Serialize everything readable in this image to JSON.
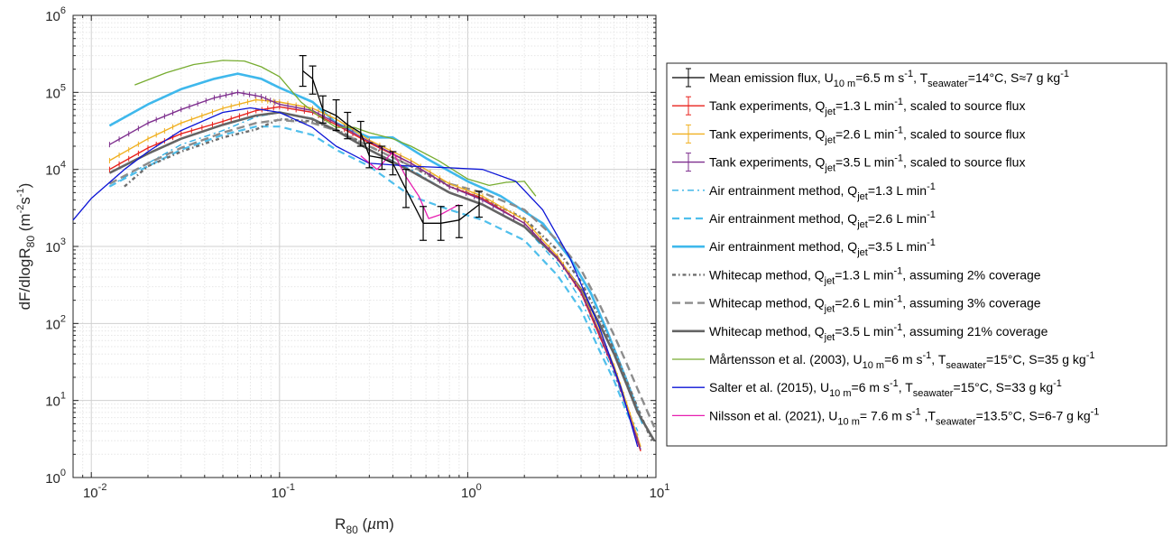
{
  "chart_data": {
    "type": "line",
    "xlabel": "R80 (µm)",
    "ylabel": "dF/dlogR80 (m-2s-1)",
    "x_scale": "log",
    "y_scale": "log",
    "xlim": [
      0.008,
      10
    ],
    "ylim": [
      1,
      1000000
    ],
    "grid": true,
    "legend_position": "right, outside",
    "x_ticks": [
      {
        "value": 0.01,
        "base": "10",
        "exp": "-2"
      },
      {
        "value": 0.1,
        "base": "10",
        "exp": "-1"
      },
      {
        "value": 1,
        "base": "10",
        "exp": "0"
      },
      {
        "value": 10,
        "base": "10",
        "exp": "1"
      }
    ],
    "y_ticks": [
      {
        "value": 1,
        "base": "10",
        "exp": "0"
      },
      {
        "value": 10,
        "base": "10",
        "exp": "1"
      },
      {
        "value": 100,
        "base": "10",
        "exp": "2"
      },
      {
        "value": 1000,
        "base": "10",
        "exp": "3"
      },
      {
        "value": 10000,
        "base": "10",
        "exp": "4"
      },
      {
        "value": 100000,
        "base": "10",
        "exp": "5"
      },
      {
        "value": 1000000,
        "base": "10",
        "exp": "6"
      }
    ],
    "series": [
      {
        "name": "Mean emission flux, U10 m=6.5 m s-1, Tseawater=14°C, S≈7 g kg-1",
        "legend_parts": [
          [
            "Mean emission flux, U",
            ""
          ],
          [
            "10 m",
            "sub"
          ],
          [
            "=6.5 m s",
            ""
          ],
          [
            "-1",
            "sup"
          ],
          [
            ", T",
            ""
          ],
          [
            "seawater",
            "sub"
          ],
          [
            "=14°C, S≈7 g kg",
            ""
          ],
          [
            "-1",
            "sup"
          ]
        ],
        "color": "#000000",
        "width": 1.3,
        "dash": "",
        "errorbars": "main",
        "x": [
          0.133,
          0.15,
          0.17,
          0.2,
          0.23,
          0.27,
          0.3,
          0.35,
          0.4,
          0.47,
          0.58,
          0.72,
          0.9,
          1.15
        ],
        "y": [
          190000,
          150000,
          60000,
          50000,
          38000,
          30000,
          15000,
          14000,
          12000,
          5500,
          2000,
          2000,
          2200,
          3500
        ],
        "err": [
          [
            120000,
            300000
          ],
          [
            95000,
            220000
          ],
          [
            40000,
            90000
          ],
          [
            32000,
            80000
          ],
          [
            25000,
            55000
          ],
          [
            20000,
            42000
          ],
          [
            10500,
            22000
          ],
          [
            10000,
            20000
          ],
          [
            8500,
            17000
          ],
          [
            3200,
            10000
          ],
          [
            1200,
            3300
          ],
          [
            1200,
            3300
          ],
          [
            1300,
            3400
          ],
          [
            2400,
            5200
          ]
        ]
      },
      {
        "name": "Tank experiments, Qjet=1.3 L min-1, scaled to source flux",
        "legend_parts": [
          [
            "Tank experiments, Q",
            ""
          ],
          [
            "jet",
            "sub"
          ],
          [
            "=1.3 L min",
            ""
          ],
          [
            "-1",
            "sup"
          ],
          [
            ", scaled to source flux",
            ""
          ]
        ],
        "color": "#e8221c",
        "width": 1.4,
        "dash": "",
        "errorbars": "small",
        "x": [
          0.0125,
          0.02,
          0.03,
          0.05,
          0.075,
          0.1,
          0.15,
          0.2,
          0.3,
          0.5,
          0.8,
          1.2,
          2,
          3,
          4,
          5,
          6,
          7,
          8.3
        ],
        "y": [
          10000,
          19000,
          29000,
          42000,
          58000,
          65000,
          55000,
          38000,
          22000,
          12000,
          6000,
          4200,
          2000,
          700,
          250,
          70,
          25,
          8,
          2.2
        ]
      },
      {
        "name": "Tank experiments, Qjet=2.6 L min-1, scaled to source flux",
        "legend_parts": [
          [
            "Tank experiments, Q",
            ""
          ],
          [
            "jet",
            "sub"
          ],
          [
            "=2.6 L min",
            ""
          ],
          [
            "-1",
            "sup"
          ],
          [
            ", scaled to source flux",
            ""
          ]
        ],
        "color": "#f0b021",
        "width": 1.4,
        "dash": "",
        "errorbars": "small",
        "x": [
          0.0125,
          0.02,
          0.03,
          0.05,
          0.075,
          0.1,
          0.15,
          0.2,
          0.3,
          0.5,
          0.8,
          1.2,
          2,
          3,
          4,
          5,
          6,
          7,
          8.3
        ],
        "y": [
          13000,
          25000,
          40000,
          62000,
          80000,
          75000,
          62000,
          45000,
          24000,
          13000,
          6500,
          4500,
          2200,
          750,
          270,
          80,
          28,
          9,
          2.5
        ]
      },
      {
        "name": "Tank experiments, Qjet=3.5 L min-1, scaled to source flux",
        "legend_parts": [
          [
            "Tank experiments, Q",
            ""
          ],
          [
            "jet",
            "sub"
          ],
          [
            "=3.5 L min",
            ""
          ],
          [
            "-1",
            "sup"
          ],
          [
            ", scaled to source flux",
            ""
          ]
        ],
        "color": "#7e2f8e",
        "width": 1.4,
        "dash": "",
        "errorbars": "small",
        "x": [
          0.0125,
          0.02,
          0.03,
          0.045,
          0.06,
          0.08,
          0.1,
          0.15,
          0.2,
          0.3,
          0.5,
          0.8,
          1.2,
          2,
          3,
          4,
          5,
          6,
          7,
          8.3
        ],
        "y": [
          21000,
          40000,
          60000,
          85000,
          100000,
          88000,
          70000,
          58000,
          40000,
          23000,
          12000,
          6000,
          4000,
          2000,
          700,
          260,
          75,
          25,
          8,
          2.3
        ]
      },
      {
        "name": "Air entrainment method, Qjet=1.3 L min-1",
        "legend_parts": [
          [
            "Air entrainment method, Q",
            ""
          ],
          [
            "jet",
            "sub"
          ],
          [
            "=1.3 L min",
            ""
          ],
          [
            "-1",
            "sup"
          ]
        ],
        "color": "#32b1e6",
        "width": 1.4,
        "dash": "7 4 2 4",
        "errorbars": "",
        "x": [
          0.0125,
          0.02,
          0.03,
          0.05,
          0.075,
          0.1,
          0.15,
          0.2,
          0.3,
          0.5,
          0.8,
          1.2,
          2,
          3,
          4,
          5,
          6,
          7,
          8
        ],
        "y": [
          6000,
          12000,
          21000,
          32000,
          48000,
          55000,
          46000,
          32000,
          18000,
          10000,
          5000,
          3500,
          1800,
          600,
          200,
          60,
          22,
          8,
          4
        ]
      },
      {
        "name": "Air entrainment method, Qjet=2.6 L min-1",
        "legend_parts": [
          [
            "Air entrainment method, Q",
            ""
          ],
          [
            "jet",
            "sub"
          ],
          [
            "=2.6 L min",
            ""
          ],
          [
            "-1",
            "sup"
          ]
        ],
        "color": "#4fbfec",
        "width": 2.2,
        "dash": "8 5",
        "errorbars": "",
        "x": [
          0.0125,
          0.02,
          0.03,
          0.05,
          0.075,
          0.1,
          0.15,
          0.2,
          0.3,
          0.5,
          0.8,
          1.2,
          2,
          3,
          4,
          5,
          6,
          7,
          8
        ],
        "y": [
          6000,
          11000,
          18000,
          28000,
          36000,
          36000,
          28000,
          18000,
          11000,
          4500,
          3000,
          2200,
          1200,
          420,
          150,
          45,
          18,
          7,
          3.5
        ]
      },
      {
        "name": "Air entrainment method, Qjet=3.5 L min-1",
        "legend_parts": [
          [
            "Air entrainment method, Q",
            ""
          ],
          [
            "jet",
            "sub"
          ],
          [
            "=3.5 L min",
            ""
          ],
          [
            "-1",
            "sup"
          ]
        ],
        "color": "#3fb8ec",
        "width": 2.6,
        "dash": "",
        "errorbars": "",
        "x": [
          0.0125,
          0.02,
          0.03,
          0.045,
          0.06,
          0.08,
          0.1,
          0.15,
          0.2,
          0.3,
          0.4,
          0.6,
          1,
          1.5,
          2.5,
          3.5,
          4.5,
          5.5,
          7,
          8.5
        ],
        "y": [
          37000,
          70000,
          110000,
          150000,
          175000,
          150000,
          115000,
          75000,
          40000,
          26000,
          26000,
          14000,
          7000,
          4500,
          2000,
          700,
          250,
          80,
          18,
          5
        ]
      },
      {
        "name": "Whitecap method, Qjet=1.3 L min-1, assuming 2% coverage",
        "legend_parts": [
          [
            "Whitecap method, Q",
            ""
          ],
          [
            "jet",
            "sub"
          ],
          [
            "=1.3 L min",
            ""
          ],
          [
            "-1",
            "sup"
          ],
          [
            ", assuming 2% coverage",
            ""
          ]
        ],
        "color": "#6e6e6e",
        "width": 2.4,
        "dash": "4 3 1.5 3",
        "errorbars": "",
        "x": [
          0.015,
          0.02,
          0.03,
          0.05,
          0.075,
          0.1,
          0.15,
          0.2,
          0.3,
          0.5,
          0.8,
          1.2,
          2,
          3,
          4,
          5,
          6,
          7,
          8,
          9.5
        ],
        "y": [
          6000,
          11000,
          17000,
          26000,
          33000,
          45000,
          42000,
          33000,
          20000,
          11000,
          6000,
          4200,
          2300,
          900,
          350,
          120,
          45,
          18,
          8,
          3
        ]
      },
      {
        "name": "Whitecap method, Qjet=2.6 L min-1, assuming 3% coverage",
        "legend_parts": [
          [
            "Whitecap method, Q",
            ""
          ],
          [
            "jet",
            "sub"
          ],
          [
            "=2.6 L min",
            ""
          ],
          [
            "-1",
            "sup"
          ],
          [
            ", assuming 3% coverage",
            ""
          ]
        ],
        "color": "#8c8c8c",
        "width": 2.4,
        "dash": "9 5",
        "errorbars": "",
        "x": [
          0.0125,
          0.02,
          0.03,
          0.05,
          0.075,
          0.1,
          0.15,
          0.2,
          0.3,
          0.5,
          0.8,
          1.2,
          2,
          3,
          4,
          5,
          6,
          7,
          8,
          9.8
        ],
        "y": [
          6500,
          12000,
          19000,
          30000,
          40000,
          44000,
          40000,
          32000,
          20000,
          11000,
          6500,
          5000,
          3000,
          1200,
          500,
          180,
          70,
          30,
          14,
          4.5
        ]
      },
      {
        "name": "Whitecap method, Qjet=3.5 L min-1, assuming 21% coverage",
        "legend_parts": [
          [
            "Whitecap method, Q",
            ""
          ],
          [
            "jet",
            "sub"
          ],
          [
            "=3.5 L min",
            ""
          ],
          [
            "-1",
            "sup"
          ],
          [
            ", assuming 21% coverage",
            ""
          ]
        ],
        "color": "#646464",
        "width": 2.6,
        "dash": "",
        "errorbars": "",
        "x": [
          0.0125,
          0.02,
          0.03,
          0.05,
          0.075,
          0.1,
          0.15,
          0.2,
          0.3,
          0.5,
          0.8,
          1.2,
          2,
          3,
          4,
          5,
          6,
          7,
          8,
          9.8
        ],
        "y": [
          9000,
          16000,
          25000,
          38000,
          50000,
          55000,
          45000,
          32000,
          18000,
          9500,
          5000,
          3500,
          1800,
          700,
          280,
          100,
          40,
          16,
          7,
          3
        ]
      },
      {
        "name": "Mårtensson et al. (2003), U10 m=6 m s-1, Tseawater=15°C, S=35 g kg-1",
        "legend_parts": [
          [
            "Mårtensson et al. (2003), U",
            ""
          ],
          [
            "10 m",
            "sub"
          ],
          [
            "=6 m s",
            ""
          ],
          [
            "-1",
            "sup"
          ],
          [
            ", T",
            ""
          ],
          [
            "seawater",
            "sub"
          ],
          [
            "=15°C, S=35 g kg",
            ""
          ],
          [
            "-1",
            "sup"
          ]
        ],
        "color": "#77ac30",
        "width": 1.3,
        "dash": "",
        "errorbars": "",
        "x": [
          0.017,
          0.025,
          0.035,
          0.05,
          0.065,
          0.08,
          0.1,
          0.13,
          0.16,
          0.2,
          0.25,
          0.3,
          0.4,
          0.5,
          0.7,
          1,
          1.3,
          1.6,
          2,
          2.3
        ],
        "y": [
          125000,
          180000,
          230000,
          260000,
          255000,
          215000,
          160000,
          75000,
          50000,
          35000,
          35000,
          30000,
          25000,
          20000,
          13000,
          7500,
          6200,
          6800,
          7000,
          4500
        ]
      },
      {
        "name": "Salter et al. (2015), U10 m=6 m s-1, Tseawater=15°C, S=33 g kg-1",
        "legend_parts": [
          [
            "Salter et al. (2015), U",
            ""
          ],
          [
            "10 m",
            "sub"
          ],
          [
            "=6 m s",
            ""
          ],
          [
            "-1",
            "sup"
          ],
          [
            ", T",
            ""
          ],
          [
            "seawater",
            "sub"
          ],
          [
            "=15°C, S=33 g kg",
            ""
          ],
          [
            "-1",
            "sup"
          ]
        ],
        "color": "#0b14d6",
        "width": 1.3,
        "dash": "",
        "errorbars": "",
        "x": [
          0.008,
          0.01,
          0.015,
          0.02,
          0.03,
          0.05,
          0.07,
          0.1,
          0.15,
          0.2,
          0.3,
          0.5,
          0.8,
          1.2,
          1.8,
          2.5,
          3.5,
          5,
          6.5,
          8
        ],
        "y": [
          2200,
          4200,
          10000,
          17000,
          32000,
          55000,
          63000,
          55000,
          35000,
          20000,
          12000,
          11000,
          10500,
          10000,
          7000,
          3000,
          700,
          90,
          15,
          2.5
        ]
      },
      {
        "name": "Nilsson et al. (2021), U10 m= 7.6 m s-1 ,Tseawater=13.5°C, S=6-7 g kg-1",
        "legend_parts": [
          [
            "Nilsson et al. (2021), U",
            ""
          ],
          [
            "10 m",
            "sub"
          ],
          [
            "= 7.6 m s",
            ""
          ],
          [
            "-1",
            "sup"
          ],
          [
            " ,T",
            ""
          ],
          [
            "seawater",
            "sub"
          ],
          [
            "=13.5°C,  S=6-7 g kg",
            ""
          ],
          [
            "-1",
            "sup"
          ]
        ],
        "color": "#e61eb0",
        "width": 1.3,
        "dash": "",
        "errorbars": "",
        "x": [
          0.27,
          0.33,
          0.4,
          0.47,
          0.55,
          0.62,
          0.72,
          0.9
        ],
        "y": [
          15000,
          10000,
          17000,
          8000,
          4500,
          2300,
          2600,
          3500
        ]
      }
    ]
  }
}
